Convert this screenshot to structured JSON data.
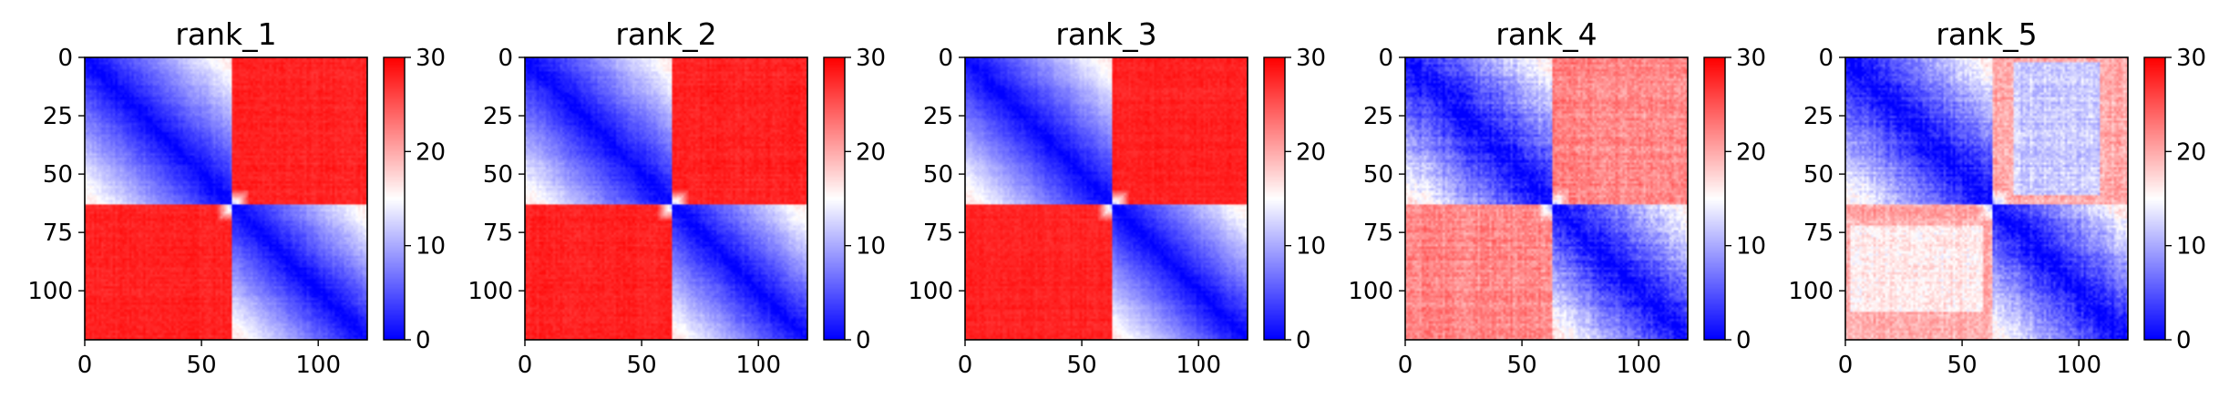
{
  "colorbar": {
    "cmap": "bwr",
    "min": 0,
    "max": 30,
    "ticks": [
      0,
      10,
      20,
      30
    ],
    "colors": {
      "low": "#0000ff",
      "mid": "#ffffff",
      "high": "#ff0000"
    }
  },
  "chart_data": [
    {
      "type": "heatmap",
      "title": "rank_1",
      "n": 121,
      "xlim": [
        0,
        121
      ],
      "ylim": [
        121,
        0
      ],
      "xticks": [
        0,
        50,
        100
      ],
      "yticks": [
        0,
        25,
        50,
        75,
        100
      ],
      "domain_boundary": 63,
      "intra_domain_max": 16,
      "inter_domain_value": 28,
      "texture_noise": 1.5,
      "faded_cross_block": null
    },
    {
      "type": "heatmap",
      "title": "rank_2",
      "n": 121,
      "xlim": [
        0,
        121
      ],
      "ylim": [
        121,
        0
      ],
      "xticks": [
        0,
        50,
        100
      ],
      "yticks": [
        0,
        25,
        50,
        75,
        100
      ],
      "domain_boundary": 63,
      "intra_domain_max": 16,
      "inter_domain_value": 28,
      "texture_noise": 1.6,
      "faded_cross_block": null
    },
    {
      "type": "heatmap",
      "title": "rank_3",
      "n": 121,
      "xlim": [
        0,
        121
      ],
      "ylim": [
        121,
        0
      ],
      "xticks": [
        0,
        50,
        100
      ],
      "yticks": [
        0,
        25,
        50,
        75,
        100
      ],
      "domain_boundary": 63,
      "intra_domain_max": 16,
      "inter_domain_value": 28,
      "texture_noise": 1.4,
      "faded_cross_block": null
    },
    {
      "type": "heatmap",
      "title": "rank_4",
      "n": 121,
      "xlim": [
        0,
        121
      ],
      "ylim": [
        121,
        0
      ],
      "xticks": [
        0,
        50,
        100
      ],
      "yticks": [
        0,
        25,
        50,
        75,
        100
      ],
      "domain_boundary": 63,
      "intra_domain_max": 16,
      "inter_domain_value": 22,
      "texture_noise": 3.5,
      "faded_cross_block": null
    },
    {
      "type": "heatmap",
      "title": "rank_5",
      "n": 121,
      "xlim": [
        0,
        121
      ],
      "ylim": [
        121,
        0
      ],
      "xticks": [
        0,
        50,
        100
      ],
      "yticks": [
        0,
        25,
        50,
        75,
        100
      ],
      "domain_boundary": 63,
      "intra_domain_max": 16,
      "inter_domain_value": 20,
      "texture_noise": 3.5,
      "faded_cross_block": {
        "rows": [
          2,
          58
        ],
        "cols": [
          72,
          108
        ],
        "value": 12
      }
    }
  ]
}
